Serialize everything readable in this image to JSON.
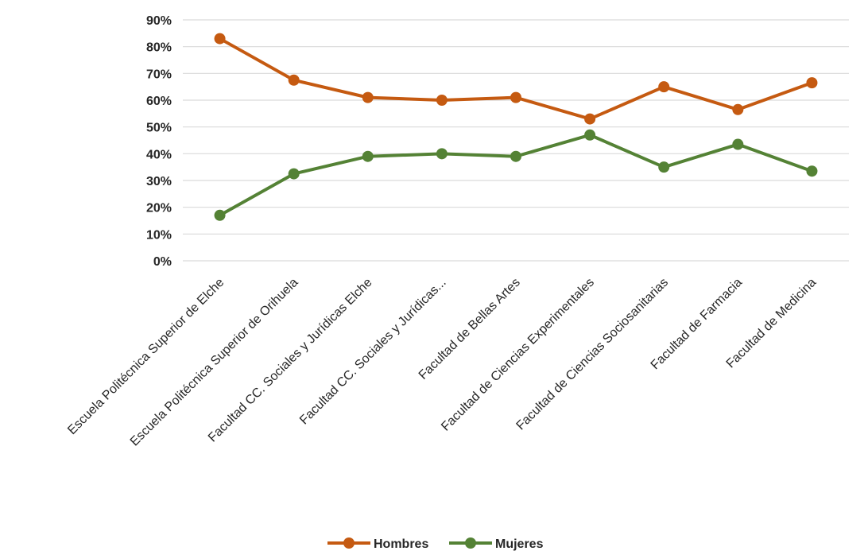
{
  "chart_data": {
    "type": "line",
    "categories": [
      "Escuela Politécnica Superior de Elche",
      "Escuela Politécnica Superior de Orihuela",
      "Facultad CC. Sociales y Jurídicas Elche",
      "Facultad CC. Sociales y Jurídicas...",
      "Facultad de Bellas Artes",
      "Facultad de Ciencias Experimentales",
      "Facultad de Ciencias Sociosanitarias",
      "Facultad de Farmacia",
      "Facultad de Medicina"
    ],
    "series": [
      {
        "name": "Hombres",
        "color": "#C55A11",
        "values": [
          83,
          67.5,
          61,
          60,
          61,
          53,
          65,
          56.5,
          66.5
        ]
      },
      {
        "name": "Mujeres",
        "color": "#548235",
        "values": [
          17,
          32.5,
          39,
          40,
          39,
          47,
          35,
          43.5,
          33.5
        ]
      }
    ],
    "y_ticks": [
      "0%",
      "10%",
      "20%",
      "30%",
      "40%",
      "50%",
      "60%",
      "70%",
      "80%",
      "90%"
    ],
    "ylim": [
      0,
      90
    ],
    "grid": true,
    "legend_position": "bottom",
    "gridline_color": "#D9D9D9"
  }
}
